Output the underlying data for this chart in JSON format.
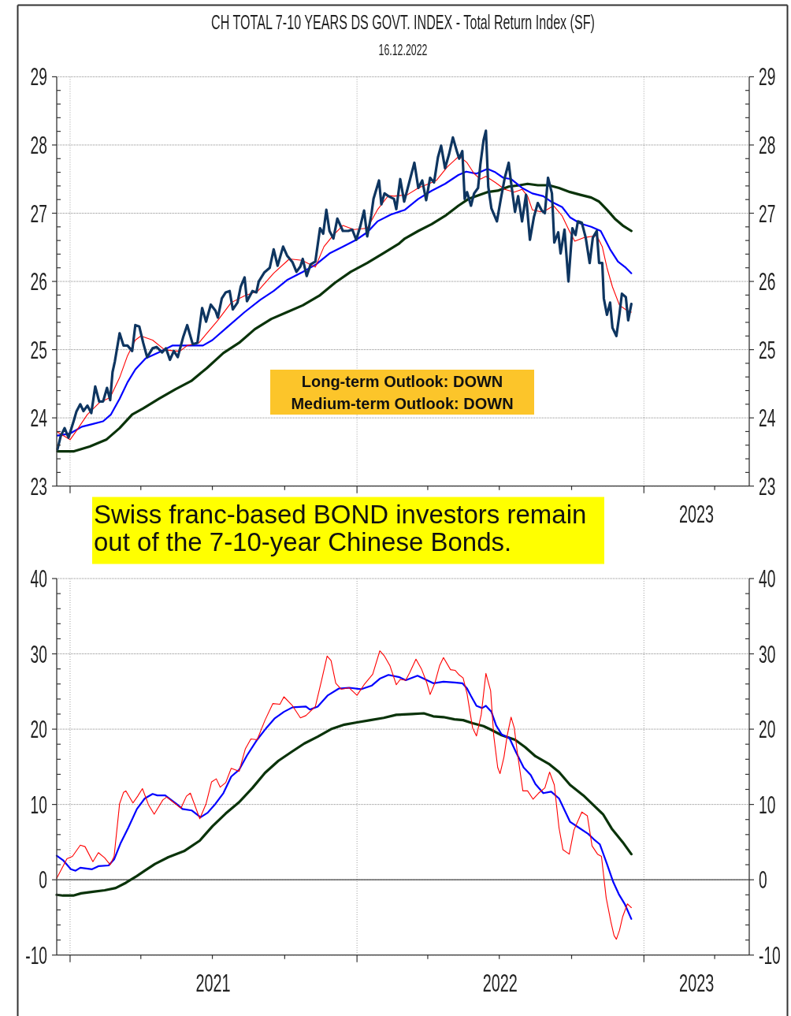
{
  "chart_data": [
    {
      "type": "line",
      "title": "CH TOTAL 7-10 YEARS DS GOVT. INDEX - Total Return Index (SF)",
      "subtitle": "16.12.2022",
      "xlim": [
        "2020-12-15",
        "2023-05-15"
      ],
      "xticks": [
        {
          "value": "2021-01-01",
          "label": null
        },
        {
          "value": "2021-04-01",
          "label": null
        },
        {
          "value": "2021-07-01",
          "label": null
        },
        {
          "value": "2021-10-01",
          "label": null
        },
        {
          "value": "2022-01-01",
          "label": null
        },
        {
          "value": "2022-04-01",
          "label": null
        },
        {
          "value": "2022-07-01",
          "label": null
        },
        {
          "value": "2022-10-01",
          "label": null
        },
        {
          "value": "2023-01-01",
          "label": null
        },
        {
          "value": "2023-04-01",
          "label": null
        }
      ],
      "tick_labels": "y",
      "ylim": [
        23,
        29
      ],
      "yticks": [
        23,
        {
          "value": 23.2,
          "label": null
        },
        {
          "value": 23.4,
          "label": null
        },
        {
          "value": 23.6,
          "label": null
        },
        {
          "value": 23.8,
          "label": null
        },
        24,
        {
          "value": 24.2,
          "label": null
        },
        {
          "value": 24.4,
          "label": null
        },
        {
          "value": 24.6,
          "label": null
        },
        {
          "value": 24.8,
          "label": null
        },
        25,
        {
          "value": 25.2,
          "label": null
        },
        {
          "value": 25.4,
          "label": null
        },
        {
          "value": 25.6,
          "label": null
        },
        {
          "value": 25.8,
          "label": null
        },
        26,
        {
          "value": 26.2,
          "label": null
        },
        {
          "value": 26.4,
          "label": null
        },
        {
          "value": 26.6,
          "label": null
        },
        {
          "value": 26.8,
          "label": null
        },
        27,
        {
          "value": 27.2,
          "label": null
        },
        {
          "value": 27.4,
          "label": null
        },
        {
          "value": 27.6,
          "label": null
        },
        {
          "value": 27.8,
          "label": null
        },
        28,
        {
          "value": 28.2,
          "label": null
        },
        {
          "value": 28.4,
          "label": null
        },
        {
          "value": 28.6,
          "label": null
        },
        {
          "value": 28.8,
          "label": null
        },
        29
      ],
      "y2lim": [
        23,
        29
      ],
      "y2ticks": [
        23,
        {
          "value": 23.2,
          "label": null
        },
        {
          "value": 23.4,
          "label": null
        },
        {
          "value": 23.6,
          "label": null
        },
        {
          "value": 23.8,
          "label": null
        },
        24,
        {
          "value": 24.2,
          "label": null
        },
        {
          "value": 24.4,
          "label": null
        },
        {
          "value": 24.6,
          "label": null
        },
        {
          "value": 24.8,
          "label": null
        },
        25,
        {
          "value": 25.2,
          "label": null
        },
        {
          "value": 25.4,
          "label": null
        },
        {
          "value": 25.6,
          "label": null
        },
        {
          "value": 25.8,
          "label": null
        },
        26,
        {
          "value": 26.2,
          "label": null
        },
        {
          "value": 26.4,
          "label": null
        },
        {
          "value": 26.6,
          "label": null
        },
        {
          "value": 26.8,
          "label": null
        },
        27,
        {
          "value": 27.2,
          "label": null
        },
        {
          "value": 27.4,
          "label": null
        },
        {
          "value": 27.6,
          "label": null
        },
        {
          "value": 27.8,
          "label": null
        },
        28,
        {
          "value": 28.2,
          "label": null
        },
        {
          "value": 28.4,
          "label": null
        },
        {
          "value": 28.6,
          "label": null
        },
        {
          "value": 28.8,
          "label": null
        },
        29
      ],
      "grid": "y",
      "ref_lines": [
        {
          "axis": "x",
          "value": "2021-01-01",
          "color": "#a0a0a0",
          "line_style": "dotted"
        },
        {
          "axis": "x",
          "value": "2022-01-01",
          "color": "#a0a0a0",
          "line_style": "dotted"
        },
        {
          "axis": "x",
          "value": "2023-01-01",
          "color": "#a0a0a0",
          "line_style": "dotted"
        }
      ],
      "annotations": [
        "Long-term Outlook: DOWN\nMedium-term Outlook: DOWN",
        "Swiss franc-based BOND investors remain\nout of the 7-10-year Chinese Bonds.",
        "2023"
      ],
      "series": [
        {
          "color": "#0a330a",
          "x": [
            "2020-12-16",
            "2021-01-06",
            "2021-01-26",
            "2021-02-16",
            "2021-03-05",
            "2021-03-21",
            "2021-04-04",
            "2021-04-24",
            "2021-05-15",
            "2021-06-04",
            "2021-06-24",
            "2021-07-15",
            "2021-08-04",
            "2021-08-24",
            "2021-09-14",
            "2021-10-04",
            "2021-10-24",
            "2021-11-14",
            "2021-12-04",
            "2021-12-24",
            "2022-01-14",
            "2022-02-03",
            "2022-02-23",
            "2022-03-03",
            "2022-03-20",
            "2022-04-06",
            "2022-04-23",
            "2022-05-10",
            "2022-05-23",
            "2022-06-06",
            "2022-06-16",
            "2022-06-29",
            "2022-07-13",
            "2022-07-27",
            "2022-08-06",
            "2022-08-19",
            "2022-09-02",
            "2022-09-15",
            "2022-09-29",
            "2022-10-12",
            "2022-10-26",
            "2022-11-05",
            "2022-11-15",
            "2022-11-25",
            "2022-12-05",
            "2022-12-16"
          ],
          "values": [
            23.51,
            23.51,
            23.58,
            23.68,
            23.85,
            24.05,
            24.14,
            24.28,
            24.42,
            24.54,
            24.73,
            24.95,
            25.1,
            25.3,
            25.45,
            25.55,
            25.65,
            25.79,
            25.98,
            26.14,
            26.27,
            26.41,
            26.55,
            26.63,
            26.74,
            26.84,
            26.96,
            27.11,
            27.21,
            27.27,
            27.31,
            27.33,
            27.39,
            27.41,
            27.43,
            27.41,
            27.41,
            27.37,
            27.31,
            27.27,
            27.23,
            27.17,
            27.05,
            26.92,
            26.82,
            26.74
          ]
        },
        {
          "color": "#0000ff",
          "x": [
            "2020-12-16",
            "2021-01-01",
            "2021-01-16",
            "2021-01-30",
            "2021-02-12",
            "2021-02-22",
            "2021-03-05",
            "2021-03-15",
            "2021-03-25",
            "2021-04-07",
            "2021-04-24",
            "2021-05-11",
            "2021-06-01",
            "2021-06-19",
            "2021-07-01",
            "2021-07-21",
            "2021-08-11",
            "2021-08-31",
            "2021-09-17",
            "2021-10-04",
            "2021-10-24",
            "2021-11-10",
            "2021-11-27",
            "2021-12-14",
            "2021-12-31",
            "2022-01-14",
            "2022-01-27",
            "2022-02-13",
            "2022-03-03",
            "2022-03-20",
            "2022-04-06",
            "2022-04-23",
            "2022-05-10",
            "2022-05-20",
            "2022-06-02",
            "2022-06-16",
            "2022-06-26",
            "2022-07-06",
            "2022-07-16",
            "2022-07-30",
            "2022-08-12",
            "2022-08-26",
            "2022-09-05",
            "2022-09-19",
            "2022-09-29",
            "2022-10-12",
            "2022-10-26",
            "2022-11-07",
            "2022-11-19",
            "2022-11-29",
            "2022-12-09",
            "2022-12-16"
          ],
          "values": [
            23.74,
            23.77,
            23.87,
            23.91,
            23.95,
            24.05,
            24.28,
            24.52,
            24.71,
            24.87,
            24.96,
            25.06,
            25.06,
            25.06,
            25.14,
            25.34,
            25.55,
            25.73,
            25.86,
            26.02,
            26.14,
            26.25,
            26.41,
            26.51,
            26.61,
            26.72,
            26.88,
            26.98,
            27.05,
            27.21,
            27.33,
            27.43,
            27.56,
            27.61,
            27.58,
            27.65,
            27.6,
            27.52,
            27.5,
            27.37,
            27.29,
            27.25,
            27.17,
            27.09,
            26.94,
            26.85,
            26.8,
            26.74,
            26.47,
            26.29,
            26.2,
            26.12
          ]
        },
        {
          "color": "#ff0000",
          "x": [
            "2020-12-16",
            "2021-01-01",
            "2021-01-09",
            "2021-01-23",
            "2021-02-07",
            "2021-02-21",
            "2021-03-05",
            "2021-03-15",
            "2021-03-25",
            "2021-04-01",
            "2021-04-16",
            "2021-05-01",
            "2021-05-15",
            "2021-05-21",
            "2021-05-30",
            "2021-06-14",
            "2021-06-24",
            "2021-07-08",
            "2021-07-25",
            "2021-08-11",
            "2021-08-28",
            "2021-09-17",
            "2021-10-07",
            "2021-10-23",
            "2021-11-09",
            "2021-11-20",
            "2021-12-02",
            "2021-12-14",
            "2021-12-28",
            "2022-01-14",
            "2022-01-27",
            "2022-02-10",
            "2022-02-17",
            "2022-03-06",
            "2022-03-20",
            "2022-04-02",
            "2022-04-12",
            "2022-04-26",
            "2022-05-11",
            "2022-05-21",
            "2022-05-30",
            "2022-06-07",
            "2022-06-14",
            "2022-06-26",
            "2022-07-08",
            "2022-07-20",
            "2022-07-30",
            "2022-08-06",
            "2022-08-12",
            "2022-08-23",
            "2022-08-29",
            "2022-09-08",
            "2022-09-19",
            "2022-09-29",
            "2022-10-05",
            "2022-10-16",
            "2022-10-26",
            "2022-11-02",
            "2022-11-09",
            "2022-11-15",
            "2022-11-22",
            "2022-12-01",
            "2022-12-11",
            "2022-12-16"
          ],
          "values": [
            23.79,
            23.68,
            23.81,
            24.05,
            24.22,
            24.3,
            24.59,
            24.91,
            25.14,
            25.2,
            25.14,
            25.0,
            24.98,
            24.98,
            25.06,
            25.1,
            25.24,
            25.43,
            25.69,
            25.79,
            25.86,
            26.12,
            26.33,
            26.31,
            26.21,
            26.51,
            26.68,
            26.82,
            26.76,
            26.78,
            27.05,
            27.26,
            27.25,
            27.27,
            27.37,
            27.43,
            27.48,
            27.68,
            27.84,
            27.74,
            27.58,
            27.5,
            27.54,
            27.45,
            27.35,
            27.31,
            27.35,
            27.25,
            27.05,
            27.02,
            27.04,
            27.11,
            26.96,
            26.72,
            26.59,
            26.64,
            26.66,
            26.67,
            26.51,
            26.2,
            25.92,
            25.65,
            25.57,
            25.55
          ]
        },
        {
          "color": "#0e3560",
          "x": [
            "2020-12-16",
            "2020-12-20",
            "2020-12-25",
            "2020-12-30",
            "2021-01-06",
            "2021-01-09",
            "2021-01-14",
            "2021-01-18",
            "2021-01-23",
            "2021-01-28",
            "2021-02-02",
            "2021-02-07",
            "2021-02-12",
            "2021-02-17",
            "2021-02-21",
            "2021-02-24",
            "2021-02-27",
            "2021-03-05",
            "2021-03-10",
            "2021-03-15",
            "2021-03-21",
            "2021-03-25",
            "2021-03-30",
            "2021-04-04",
            "2021-04-09",
            "2021-04-16",
            "2021-04-21",
            "2021-04-28",
            "2021-05-03",
            "2021-05-08",
            "2021-05-13",
            "2021-05-18",
            "2021-05-25",
            "2021-05-30",
            "2021-06-06",
            "2021-06-12",
            "2021-06-18",
            "2021-06-23",
            "2021-06-29",
            "2021-07-05",
            "2021-07-08",
            "2021-07-13",
            "2021-07-18",
            "2021-07-23",
            "2021-07-27",
            "2021-08-02",
            "2021-08-06",
            "2021-08-11",
            "2021-08-14",
            "2021-08-21",
            "2021-08-26",
            "2021-08-29",
            "2021-09-05",
            "2021-09-12",
            "2021-09-17",
            "2021-09-22",
            "2021-09-29",
            "2021-10-04",
            "2021-10-11",
            "2021-10-16",
            "2021-10-21",
            "2021-10-24",
            "2021-10-29",
            "2021-11-03",
            "2021-11-09",
            "2021-11-15",
            "2021-11-19",
            "2021-11-23",
            "2021-11-27",
            "2021-12-02",
            "2021-12-07",
            "2021-12-14",
            "2021-12-21",
            "2021-12-26",
            "2021-12-31",
            "2022-01-05",
            "2022-01-10",
            "2022-01-14",
            "2022-01-19",
            "2022-01-22",
            "2022-01-29",
            "2022-02-01",
            "2022-02-05",
            "2022-02-10",
            "2022-02-17",
            "2022-02-20",
            "2022-02-25",
            "2022-03-02",
            "2022-03-10",
            "2022-03-15",
            "2022-03-20",
            "2022-03-25",
            "2022-03-30",
            "2022-04-04",
            "2022-04-09",
            "2022-04-14",
            "2022-04-18",
            "2022-04-23",
            "2022-04-28",
            "2022-05-03",
            "2022-05-08",
            "2022-05-11",
            "2022-05-15",
            "2022-05-18",
            "2022-05-21",
            "2022-05-26",
            "2022-05-30",
            "2022-06-04",
            "2022-06-07",
            "2022-06-11",
            "2022-06-14",
            "2022-06-17",
            "2022-06-21",
            "2022-06-28",
            "2022-07-03",
            "2022-07-08",
            "2022-07-13",
            "2022-07-16",
            "2022-07-21",
            "2022-07-25",
            "2022-07-30",
            "2022-08-04",
            "2022-08-09",
            "2022-08-14",
            "2022-08-19",
            "2022-08-24",
            "2022-08-28",
            "2022-09-01",
            "2022-09-06",
            "2022-09-09",
            "2022-09-14",
            "2022-09-17",
            "2022-09-22",
            "2022-09-27",
            "2022-10-02",
            "2022-10-06",
            "2022-10-09",
            "2022-10-14",
            "2022-10-19",
            "2022-10-24",
            "2022-10-28",
            "2022-11-02",
            "2022-11-05",
            "2022-11-09",
            "2022-11-11",
            "2022-11-15",
            "2022-11-19",
            "2022-11-22",
            "2022-11-27",
            "2022-12-01",
            "2022-12-04",
            "2022-12-09",
            "2022-12-12",
            "2022-12-16"
          ],
          "values": [
            23.54,
            23.73,
            23.85,
            23.71,
            23.97,
            24.09,
            24.2,
            24.1,
            24.18,
            24.07,
            24.46,
            24.24,
            24.24,
            24.44,
            24.26,
            24.67,
            24.83,
            25.24,
            25.06,
            25.06,
            24.98,
            25.36,
            25.34,
            25.1,
            24.89,
            25.02,
            25.04,
            24.96,
            25.02,
            24.85,
            24.98,
            24.89,
            25.19,
            25.36,
            25.08,
            25.1,
            25.61,
            25.41,
            25.66,
            25.57,
            25.47,
            25.75,
            25.84,
            25.86,
            25.59,
            25.69,
            25.92,
            26.06,
            25.71,
            25.86,
            25.84,
            26.0,
            26.13,
            26.2,
            26.47,
            26.23,
            26.51,
            26.38,
            26.28,
            26.14,
            26.22,
            26.33,
            26.08,
            26.25,
            26.29,
            26.78,
            26.7,
            27.05,
            26.74,
            26.63,
            26.92,
            26.74,
            26.74,
            26.76,
            26.61,
            26.8,
            27.04,
            26.66,
            26.96,
            27.21,
            27.48,
            27.13,
            27.29,
            27.25,
            27.21,
            27.06,
            27.5,
            27.17,
            27.52,
            27.74,
            27.37,
            27.48,
            27.19,
            27.52,
            27.45,
            27.82,
            27.99,
            27.66,
            27.86,
            28.11,
            27.91,
            27.8,
            27.91,
            27.21,
            27.31,
            27.11,
            27.29,
            27.37,
            27.72,
            28.07,
            28.21,
            27.39,
            27.07,
            26.88,
            27.21,
            27.52,
            27.74,
            27.45,
            27.02,
            27.25,
            26.88,
            27.27,
            26.61,
            26.94,
            27.15,
            27.04,
            27.0,
            27.52,
            27.29,
            26.57,
            26.72,
            26.41,
            26.76,
            26.0,
            26.78,
            26.68,
            26.88,
            26.86,
            26.64,
            26.27,
            26.64,
            26.74,
            26.27,
            26.27,
            25.75,
            25.51,
            25.69,
            25.32,
            25.2,
            25.53,
            25.82,
            25.77,
            25.43,
            25.67
          ]
        }
      ]
    },
    {
      "type": "line",
      "xlim": [
        "2020-12-15",
        "2023-05-15"
      ],
      "xticks": [
        {
          "value": "2021-01-01",
          "label": null
        },
        {
          "value": "2021-04-01",
          "label": null
        },
        {
          "value": "2021-07-01",
          "label": null
        },
        {
          "value": "2021-10-01",
          "label": null
        },
        {
          "value": "2022-01-01",
          "label": null
        },
        {
          "value": "2022-04-01",
          "label": null
        },
        {
          "value": "2022-07-01",
          "label": null
        },
        {
          "value": "2022-10-01",
          "label": null
        },
        {
          "value": "2023-01-01",
          "label": null
        },
        {
          "value": "2023-04-01",
          "label": null
        },
        {
          "value": "2021-07-02",
          "label": "2021"
        },
        {
          "value": "2022-07-02",
          "label": "2022"
        },
        {
          "value": "2023-03-09",
          "label": "2023"
        }
      ],
      "ylim": [
        -10,
        40
      ],
      "yticks": [
        -10,
        {
          "value": -8,
          "label": null
        },
        {
          "value": -6,
          "label": null
        },
        {
          "value": -4,
          "label": null
        },
        {
          "value": -2,
          "label": null
        },
        0,
        {
          "value": 2,
          "label": null
        },
        {
          "value": 4,
          "label": null
        },
        {
          "value": 6,
          "label": null
        },
        {
          "value": 8,
          "label": null
        },
        10,
        {
          "value": 12,
          "label": null
        },
        {
          "value": 14,
          "label": null
        },
        {
          "value": 16,
          "label": null
        },
        {
          "value": 18,
          "label": null
        },
        20,
        {
          "value": 22,
          "label": null
        },
        {
          "value": 24,
          "label": null
        },
        {
          "value": 26,
          "label": null
        },
        {
          "value": 28,
          "label": null
        },
        30,
        {
          "value": 32,
          "label": null
        },
        {
          "value": 34,
          "label": null
        },
        {
          "value": 36,
          "label": null
        },
        {
          "value": 38,
          "label": null
        },
        40
      ],
      "y2lim": [
        -10,
        40
      ],
      "y2ticks": [
        -10,
        {
          "value": -8,
          "label": null
        },
        {
          "value": -6,
          "label": null
        },
        {
          "value": -4,
          "label": null
        },
        {
          "value": -2,
          "label": null
        },
        0,
        {
          "value": 2,
          "label": null
        },
        {
          "value": 4,
          "label": null
        },
        {
          "value": 6,
          "label": null
        },
        {
          "value": 8,
          "label": null
        },
        10,
        {
          "value": 12,
          "label": null
        },
        {
          "value": 14,
          "label": null
        },
        {
          "value": 16,
          "label": null
        },
        {
          "value": 18,
          "label": null
        },
        20,
        {
          "value": 22,
          "label": null
        },
        {
          "value": 24,
          "label": null
        },
        {
          "value": 26,
          "label": null
        },
        {
          "value": 28,
          "label": null
        },
        30,
        {
          "value": 32,
          "label": null
        },
        {
          "value": 34,
          "label": null
        },
        {
          "value": 36,
          "label": null
        },
        {
          "value": 38,
          "label": null
        },
        40
      ],
      "grid": "y",
      "ref_lines": [
        {
          "axis": "x",
          "value": "2021-01-01",
          "color": "#a0a0a0",
          "line_style": "dotted"
        },
        {
          "axis": "x",
          "value": "2022-01-01",
          "color": "#a0a0a0",
          "line_style": "dotted"
        },
        {
          "axis": "x",
          "value": "2023-01-01",
          "color": "#a0a0a0",
          "line_style": "dotted"
        },
        {
          "axis": "y",
          "value": 0,
          "color": "#4d4d4d",
          "line_style": "solid"
        }
      ],
      "series": [
        {
          "color": "#0a330a",
          "x": [
            "2020-12-15",
            "2020-12-23",
            "2021-01-05",
            "2021-01-15",
            "2021-01-30",
            "2021-02-14",
            "2021-02-28",
            "2021-03-13",
            "2021-03-27",
            "2021-04-06",
            "2021-04-19",
            "2021-05-06",
            "2021-05-26",
            "2021-06-15",
            "2021-07-01",
            "2021-07-18",
            "2021-08-04",
            "2021-08-21",
            "2021-09-06",
            "2021-09-23",
            "2021-10-10",
            "2021-10-26",
            "2021-11-12",
            "2021-11-29",
            "2021-12-16",
            "2022-01-01",
            "2022-01-18",
            "2022-02-04",
            "2022-02-20",
            "2022-03-12",
            "2022-03-27",
            "2022-04-08",
            "2022-04-21",
            "2022-05-05",
            "2022-05-16",
            "2022-05-28",
            "2022-06-11",
            "2022-06-21",
            "2022-07-04",
            "2022-07-21",
            "2022-08-03",
            "2022-08-16",
            "2022-09-02",
            "2022-09-15",
            "2022-09-29",
            "2022-10-16",
            "2022-10-29",
            "2022-11-10",
            "2022-11-21",
            "2022-12-05",
            "2022-12-16"
          ],
          "values": [
            -2.0,
            -2.1,
            -2.1,
            -1.8,
            -1.6,
            -1.4,
            -1.1,
            -0.4,
            0.5,
            1.2,
            2.1,
            3.0,
            3.8,
            5.2,
            7.1,
            8.8,
            10.3,
            12.2,
            14.2,
            15.8,
            17.0,
            18.1,
            19.0,
            20.0,
            20.6,
            20.9,
            21.2,
            21.5,
            21.9,
            22.0,
            22.1,
            21.7,
            21.6,
            21.3,
            21.2,
            20.8,
            20.4,
            19.9,
            19.2,
            18.6,
            17.6,
            16.4,
            15.4,
            14.3,
            12.6,
            11.2,
            9.9,
            8.7,
            6.8,
            5.0,
            3.4
          ]
        },
        {
          "color": "#0000ff",
          "x": [
            "2020-12-15",
            "2020-12-23",
            "2021-01-02",
            "2021-01-08",
            "2021-01-14",
            "2021-01-29",
            "2021-02-06",
            "2021-02-19",
            "2021-02-26",
            "2021-03-06",
            "2021-03-16",
            "2021-03-27",
            "2021-04-06",
            "2021-04-16",
            "2021-04-22",
            "2021-05-02",
            "2021-05-16",
            "2021-05-24",
            "2021-06-05",
            "2021-06-16",
            "2021-06-25",
            "2021-07-05",
            "2021-07-15",
            "2021-07-25",
            "2021-08-04",
            "2021-08-14",
            "2021-08-27",
            "2021-09-08",
            "2021-09-18",
            "2021-09-30",
            "2021-10-11",
            "2021-10-28",
            "2021-11-02",
            "2021-11-12",
            "2021-11-25",
            "2021-12-09",
            "2021-12-22",
            "2022-01-06",
            "2022-01-20",
            "2022-01-30",
            "2022-02-10",
            "2022-02-24",
            "2022-03-04",
            "2022-03-19",
            "2022-03-29",
            "2022-04-08",
            "2022-04-21",
            "2022-05-05",
            "2022-05-15",
            "2022-05-21",
            "2022-05-26",
            "2022-06-02",
            "2022-06-09",
            "2022-06-14",
            "2022-06-21",
            "2022-06-27",
            "2022-07-04",
            "2022-07-14",
            "2022-07-22",
            "2022-08-01",
            "2022-08-10",
            "2022-08-16",
            "2022-08-26",
            "2022-09-05",
            "2022-09-15",
            "2022-09-29",
            "2022-10-09",
            "2022-10-22",
            "2022-10-29",
            "2022-11-06",
            "2022-11-15",
            "2022-11-23",
            "2022-11-30",
            "2022-12-08",
            "2022-12-16"
          ],
          "values": [
            3.2,
            2.6,
            1.4,
            1.2,
            1.6,
            1.4,
            1.8,
            1.9,
            2.7,
            4.8,
            6.9,
            9.4,
            10.8,
            11.4,
            11.2,
            11.2,
            10.1,
            9.4,
            9.2,
            8.3,
            8.9,
            10.1,
            11.5,
            13.7,
            14.6,
            16.5,
            18.6,
            20.2,
            21.4,
            22.3,
            22.9,
            23.0,
            22.6,
            23.0,
            24.5,
            25.4,
            25.5,
            25.3,
            25.8,
            26.7,
            27.2,
            26.9,
            26.5,
            27.1,
            26.6,
            26.1,
            26.3,
            26.2,
            26.1,
            25.4,
            24.4,
            23.1,
            22.8,
            23.1,
            22.3,
            20.5,
            19.3,
            18.8,
            17.0,
            14.9,
            13.9,
            12.7,
            11.5,
            11.7,
            10.8,
            7.7,
            7.0,
            6.1,
            5.4,
            4.7,
            2.1,
            -0.3,
            -1.9,
            -3.3,
            -5.2
          ]
        },
        {
          "color": "#ff0000",
          "x": [
            "2020-12-15",
            "2020-12-28",
            "2021-01-04",
            "2021-01-14",
            "2021-01-20",
            "2021-01-30",
            "2021-02-06",
            "2021-02-14",
            "2021-02-21",
            "2021-02-26",
            "2021-03-05",
            "2021-03-10",
            "2021-03-13",
            "2021-03-22",
            "2021-03-28",
            "2021-04-03",
            "2021-04-11",
            "2021-04-18",
            "2021-04-29",
            "2021-05-04",
            "2021-05-11",
            "2021-05-22",
            "2021-05-29",
            "2021-06-03",
            "2021-06-15",
            "2021-06-23",
            "2021-06-30",
            "2021-07-06",
            "2021-07-11",
            "2021-07-18",
            "2021-07-25",
            "2021-08-04",
            "2021-08-12",
            "2021-08-19",
            "2021-08-27",
            "2021-09-06",
            "2021-09-16",
            "2021-09-25",
            "2021-09-30",
            "2021-10-11",
            "2021-10-21",
            "2021-10-28",
            "2021-11-09",
            "2021-11-17",
            "2021-11-24",
            "2021-11-29",
            "2021-12-05",
            "2021-12-12",
            "2021-12-22",
            "2022-01-01",
            "2022-01-10",
            "2022-01-21",
            "2022-01-30",
            "2022-02-05",
            "2022-02-12",
            "2022-02-20",
            "2022-02-25",
            "2022-03-04",
            "2022-03-09",
            "2022-03-17",
            "2022-03-24",
            "2022-03-31",
            "2022-04-04",
            "2022-04-10",
            "2022-04-16",
            "2022-04-21",
            "2022-04-30",
            "2022-05-06",
            "2022-05-11",
            "2022-05-16",
            "2022-05-21",
            "2022-05-28",
            "2022-06-02",
            "2022-06-08",
            "2022-06-14",
            "2022-06-20",
            "2022-06-24",
            "2022-06-29",
            "2022-07-02",
            "2022-07-07",
            "2022-07-11",
            "2022-07-16",
            "2022-07-20",
            "2022-07-24",
            "2022-07-31",
            "2022-08-06",
            "2022-08-13",
            "2022-08-20",
            "2022-08-28",
            "2022-09-03",
            "2022-09-09",
            "2022-09-15",
            "2022-09-20",
            "2022-09-28",
            "2022-10-04",
            "2022-10-14",
            "2022-10-21",
            "2022-10-27",
            "2022-11-03",
            "2022-11-08",
            "2022-11-14",
            "2022-11-20",
            "2022-11-24",
            "2022-11-27",
            "2022-12-01",
            "2022-12-05",
            "2022-12-11",
            "2022-12-14",
            "2022-12-16"
          ],
          "values": [
            0.2,
            2.8,
            3.1,
            4.6,
            4.4,
            2.4,
            3.6,
            2.9,
            2.0,
            3.1,
            10.1,
            11.6,
            11.8,
            10.2,
            11.1,
            12.1,
            9.9,
            8.7,
            10.6,
            11.0,
            10.4,
            9.5,
            11.1,
            11.5,
            8.1,
            10.1,
            13.0,
            13.4,
            12.3,
            12.9,
            14.8,
            14.4,
            17.4,
            18.7,
            18.6,
            21.2,
            23.4,
            23.3,
            24.3,
            23.1,
            21.5,
            21.8,
            23.0,
            26.5,
            29.7,
            29.1,
            26.1,
            25.3,
            25.5,
            24.5,
            25.9,
            27.3,
            30.4,
            29.7,
            28.4,
            25.9,
            26.6,
            26.5,
            27.5,
            29.3,
            28.0,
            26.1,
            24.6,
            26.1,
            28.4,
            29.5,
            27.9,
            27.8,
            27.2,
            26.8,
            24.7,
            20.2,
            19.1,
            21.9,
            27.4,
            25.1,
            19.1,
            14.9,
            14.1,
            16.3,
            19.1,
            21.6,
            20.2,
            16.9,
            11.8,
            11.8,
            10.7,
            11.5,
            12.2,
            14.3,
            12.6,
            6.9,
            4.0,
            3.4,
            6.6,
            9.0,
            8.5,
            4.5,
            3.4,
            3.1,
            -2.4,
            -5.6,
            -7.4,
            -7.9,
            -6.7,
            -4.9,
            -3.2,
            -3.5,
            -3.7
          ]
        }
      ]
    }
  ]
}
